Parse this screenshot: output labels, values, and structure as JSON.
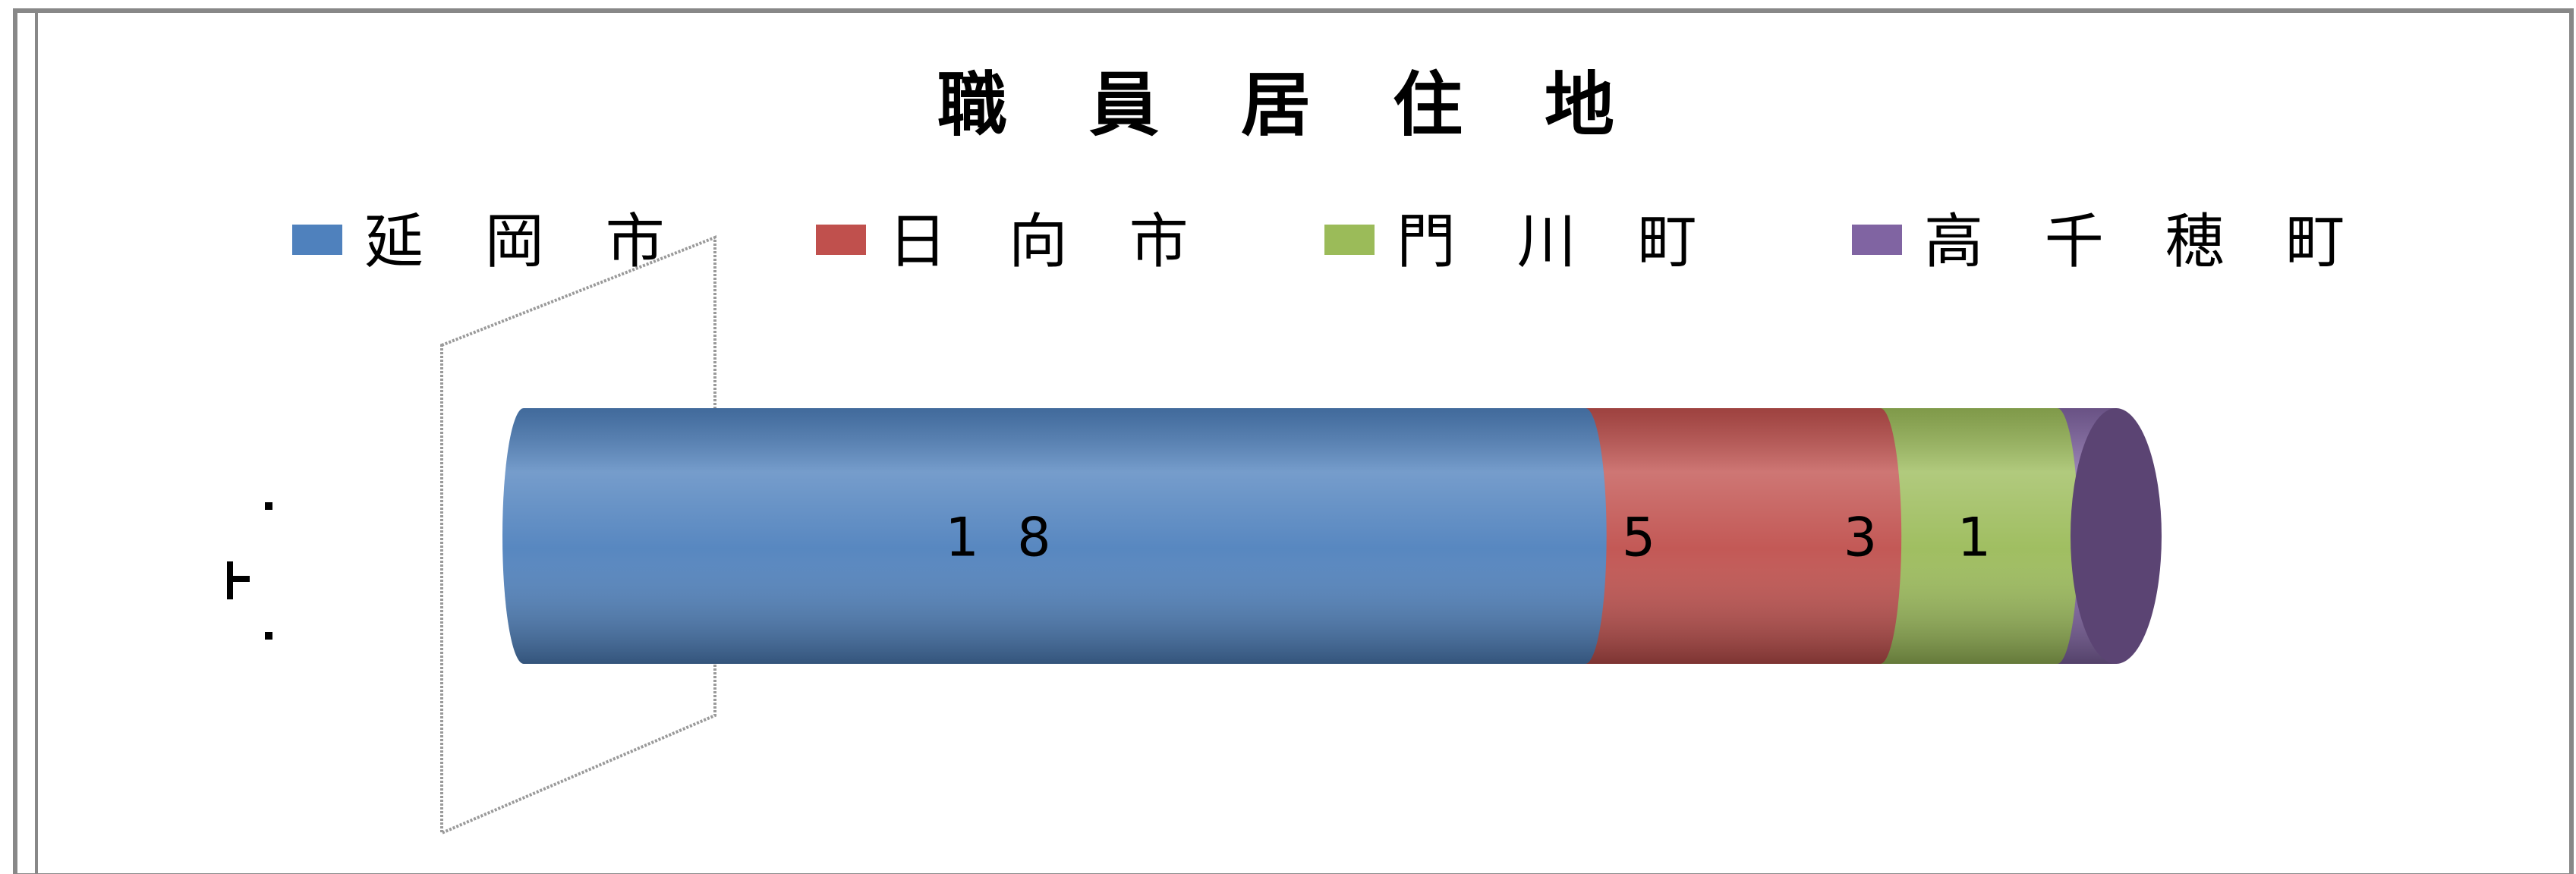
{
  "chart_data": {
    "type": "bar",
    "orientation": "horizontal",
    "stacked": true,
    "style": "3d-cylinder",
    "title": "職 員 居 住 地",
    "categories": [
      ""
    ],
    "series": [
      {
        "name": "延 岡 市",
        "values": [
          18
        ],
        "color": "#4f81bd"
      },
      {
        "name": "日 向 市",
        "values": [
          5
        ],
        "color": "#c0504d"
      },
      {
        "name": "門 川 町",
        "values": [
          3
        ],
        "color": "#9bbb59"
      },
      {
        "name": "高 千 穂 町",
        "values": [
          1
        ],
        "color": "#8064a2"
      }
    ],
    "data_labels": [
      "1 8",
      "5",
      "3",
      "1"
    ],
    "legend_position": "top",
    "grid": false,
    "xlim": [
      0,
      27
    ]
  }
}
